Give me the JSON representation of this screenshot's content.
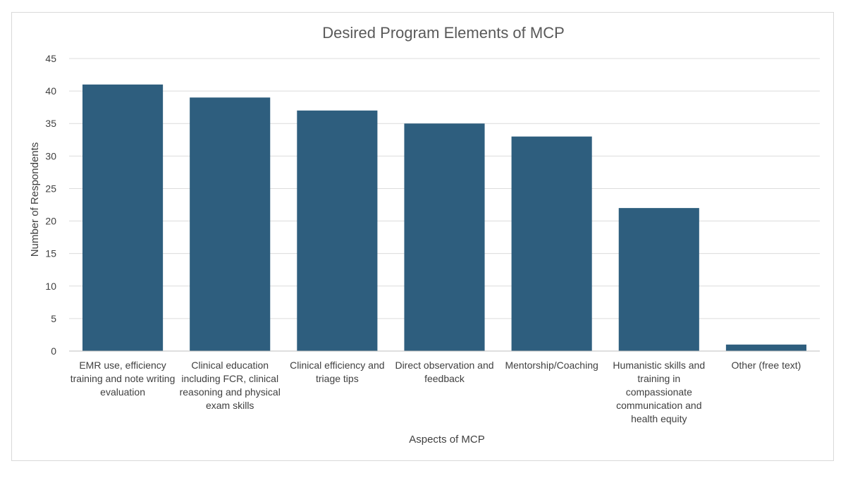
{
  "chart_data": {
    "type": "bar",
    "title": "Desired Program Elements of MCP",
    "xlabel": "Aspects of MCP",
    "ylabel": "Number of Respondents",
    "ylim": [
      0,
      45
    ],
    "yticks": [
      0,
      5,
      10,
      15,
      20,
      25,
      30,
      35,
      40,
      45
    ],
    "grid": true,
    "legend": "none",
    "bar_color": "#2e5e7e",
    "categories": [
      [
        "EMR use, efficiency",
        "training and note writing",
        "evaluation"
      ],
      [
        "Clinical education",
        "including FCR, clinical",
        "reasoning and physical",
        "exam skills"
      ],
      [
        "Clinical efficiency and",
        "triage tips"
      ],
      [
        "Direct observation and",
        "feedback"
      ],
      [
        "Mentorship/Coaching"
      ],
      [
        "Humanistic skills and",
        "training in",
        "compassionate",
        "communication and",
        "health equity"
      ],
      [
        "Other (free text)"
      ]
    ],
    "values": [
      41,
      39,
      37,
      35,
      33,
      22,
      1
    ]
  }
}
